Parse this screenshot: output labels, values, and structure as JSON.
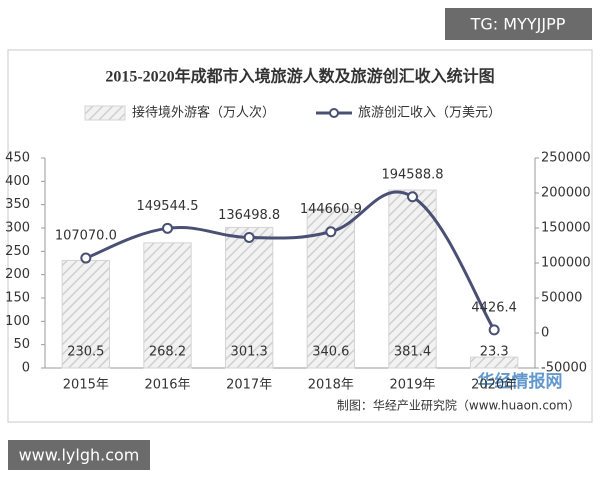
{
  "chart_data": {
    "type": "combo",
    "title": "2015-2020年成都市入境旅游人数及旅游创汇收入统计图",
    "categories": [
      "2015年",
      "2016年",
      "2017年",
      "2018年",
      "2019年",
      "2020年"
    ],
    "series": [
      {
        "name": "接待境外游客（万人次）",
        "type": "bar",
        "color": "#d4d4d4",
        "values": [
          230.5,
          268.2,
          301.3,
          340.6,
          381.4,
          23.3
        ]
      },
      {
        "name": "旅游创汇收入（万美元）",
        "type": "line",
        "axis": "y2",
        "color": "#4a5073",
        "values": [
          107070.0,
          149544.5,
          136498.8,
          144660.9,
          194588.8,
          4426.4
        ],
        "value_labels": [
          "107070.0",
          "149544.5",
          "136498.8",
          "144660.9",
          "194588.8",
          "4426.4"
        ]
      }
    ],
    "ylim": [
      0,
      450
    ],
    "yticks": [
      0,
      50,
      100,
      150,
      200,
      250,
      300,
      350,
      400,
      450
    ],
    "y2lim": [
      -50000,
      250000
    ],
    "y2ticks": [
      -50000,
      0,
      50000,
      100000,
      150000,
      200000,
      250000
    ],
    "source": "制图：华经产业研究院（www.huaon.com）"
  },
  "watermarks": {
    "top": "TG: MYYJJPP",
    "bottom": "www.lylgh.com",
    "logo": "华经情报网"
  }
}
